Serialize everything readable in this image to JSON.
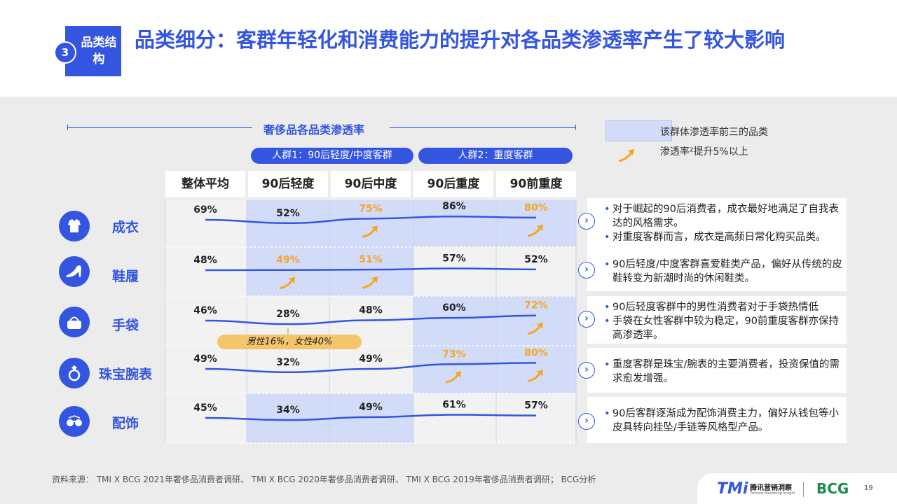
{
  "header": {
    "section_number": "3",
    "section_label": "品类结构",
    "title": "品类细分：客群年轻化和消费能力的提升对各品类渗透率产生了较大影响"
  },
  "legend": {
    "box_label": "该群体渗透率前三的品类",
    "arrow_label": "渗透率²提升5%以上"
  },
  "colors": {
    "accent": "#3455e0",
    "highlight": "#d2dbf7",
    "orange": "#f5a623",
    "pill": "#f5c56b"
  },
  "chart_data": {
    "type": "line",
    "title": "奢侈品各品类渗透率",
    "groups": [
      {
        "label": "人群1：90后轻度/中度客群",
        "columns": [
          "90后轻度",
          "90后中度"
        ]
      },
      {
        "label": "人群2：重度客群",
        "columns": [
          "90后重度",
          "90前重度"
        ]
      }
    ],
    "columns": [
      "整体平均",
      "90后轻度",
      "90后中度",
      "90后重度",
      "90前重度"
    ],
    "series": [
      {
        "name": "成衣",
        "icon": "clothing-icon",
        "values": [
          69,
          52,
          75,
          86,
          80
        ],
        "labels": [
          "69%",
          "52%",
          "75%",
          "86%",
          "80%"
        ],
        "top3": [
          false,
          true,
          true,
          true,
          true
        ],
        "rise": [
          false,
          false,
          true,
          false,
          true
        ]
      },
      {
        "name": "鞋履",
        "icon": "shoe-icon",
        "values": [
          48,
          49,
          51,
          57,
          52
        ],
        "labels": [
          "48%",
          "49%",
          "51%",
          "57%",
          "52%"
        ],
        "top3": [
          false,
          true,
          true,
          false,
          false
        ],
        "rise": [
          false,
          true,
          true,
          false,
          false
        ]
      },
      {
        "name": "手袋",
        "icon": "handbag-icon",
        "values": [
          46,
          28,
          48,
          60,
          72
        ],
        "labels": [
          "46%",
          "28%",
          "48%",
          "60%",
          "72%"
        ],
        "top3": [
          false,
          false,
          false,
          true,
          true
        ],
        "rise": [
          false,
          false,
          false,
          false,
          true
        ]
      },
      {
        "name": "珠宝腕表",
        "icon": "ring-icon",
        "values": [
          49,
          32,
          49,
          73,
          80
        ],
        "labels": [
          "49%",
          "32%",
          "49%",
          "73%",
          "80%"
        ],
        "top3": [
          false,
          false,
          false,
          true,
          true
        ],
        "rise": [
          false,
          false,
          false,
          true,
          true
        ]
      },
      {
        "name": "配饰",
        "icon": "sunglasses-icon",
        "values": [
          45,
          34,
          49,
          61,
          57
        ],
        "labels": [
          "45%",
          "34%",
          "49%",
          "61%",
          "57%"
        ],
        "top3": [
          false,
          true,
          true,
          false,
          false
        ],
        "rise": [
          false,
          false,
          false,
          false,
          false
        ]
      }
    ],
    "annotation": "男性16%，女性40%"
  },
  "notes": [
    {
      "lines": [
        "对于崛起的90后消费者，成衣最好地满足了自我表达的风格需求。",
        "对重度客群而言，成衣是高频日常化购买品类。"
      ]
    },
    {
      "lines": [
        "90后轻度/中度客群喜爱鞋类产品，偏好从传统的皮鞋转变为新潮时尚的休闲鞋类。"
      ]
    },
    {
      "lines": [
        "90后轻度客群中的男性消费者对于手袋热情低",
        "手袋在女性客群中较为稳定，90前重度客群亦保持高渗透率。"
      ]
    },
    {
      "lines": [
        "重度客群是珠宝/腕表的主要消费者，投资保值的需求愈发增强。"
      ]
    },
    {
      "lines": [
        "90后客群逐渐成为配饰消费主力，偏好从钱包等小皮具转向挂坠/手链等风格型产品。"
      ]
    }
  ],
  "source": "资料来源： TMI X BCG 2021年奢侈品消费者调研、 TMI X BCG 2020年奢侈品消费者调研、 TMI X BCG 2019年奢侈品消费者调研； BCG分析",
  "footer": {
    "tmi_logo": "TMi",
    "tmi_name": "腾讯营销洞察",
    "tmi_sub": "Tencent Marketing Insight",
    "bcg_logo": "BCG",
    "page_number": "19"
  }
}
